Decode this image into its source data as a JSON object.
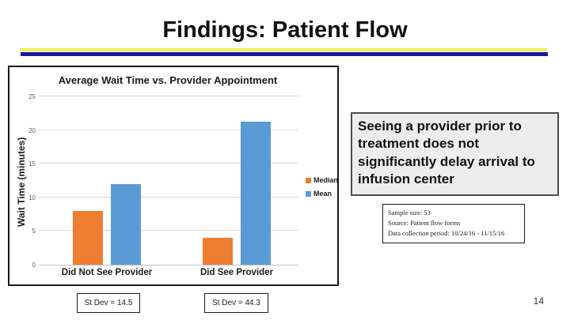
{
  "slide": {
    "title": "Findings: Patient Flow",
    "page_number": "14"
  },
  "colors": {
    "accent_yellow": "#EFEF5E",
    "accent_navy": "#181898",
    "median_orange": "#ED7D31",
    "mean_blue": "#5B9BD5",
    "gridline_gray": "#D9D9D9"
  },
  "chart_data": {
    "type": "bar",
    "title": "Average Wait Time vs. Provider Appointment",
    "xlabel": "",
    "ylabel": "Wait Time (minutes)",
    "categories": [
      "Did Not See Provider",
      "Did See Provider"
    ],
    "series": [
      {
        "name": "Median",
        "color": "#ED7D31",
        "values": [
          8,
          4
        ]
      },
      {
        "name": "Mean",
        "color": "#5B9BD5",
        "values": [
          12,
          21.3
        ]
      }
    ],
    "ylim": [
      0,
      25
    ],
    "yticks": [
      0,
      5,
      10,
      15,
      20,
      25
    ],
    "grid": true,
    "legend_position": "right"
  },
  "callout": {
    "text": "Seeing a provider prior to treatment does not significantly delay arrival to infusion center"
  },
  "note_box": {
    "lines": [
      "Sample size: 53",
      "Source: Patient flow forms",
      "Data collection period: 10/24/16 - 11/15/16"
    ]
  },
  "stdev_boxes": [
    {
      "label": "St Dev = 14.5"
    },
    {
      "label": "St Dev = 44.3"
    }
  ]
}
